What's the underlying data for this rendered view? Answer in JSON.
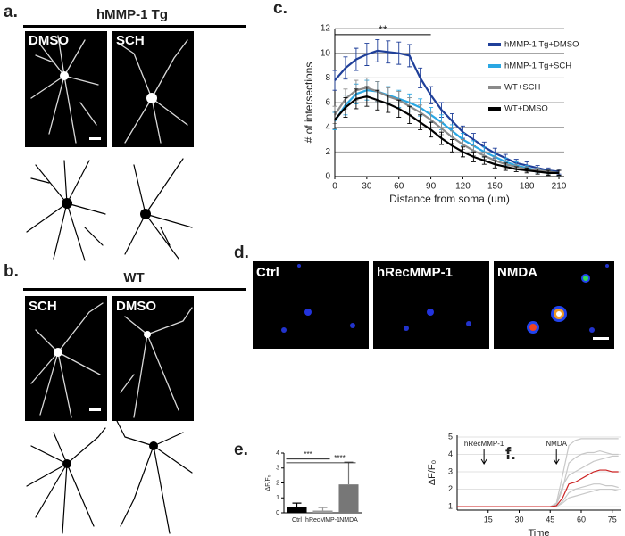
{
  "figure": {
    "a": {
      "label": "a.",
      "group": "hMMP-1 Tg",
      "images": [
        "DMSO",
        "SCH"
      ]
    },
    "b": {
      "label": "b.",
      "group": "WT",
      "images": [
        "SCH",
        "DMSO"
      ]
    },
    "c": {
      "label": "c."
    },
    "d": {
      "label": "d.",
      "images": [
        "Ctrl",
        "hRecMMP-1",
        "NMDA"
      ]
    },
    "e": {
      "label": "e."
    },
    "f": {
      "label": "f."
    }
  },
  "chart_data": [
    {
      "type": "line",
      "xlabel": "Distance from soma (um)",
      "ylabel": "# of intersections",
      "x": [
        0,
        10,
        20,
        30,
        40,
        50,
        60,
        70,
        80,
        90,
        100,
        110,
        120,
        130,
        140,
        150,
        160,
        170,
        180,
        190,
        200,
        210
      ],
      "xlim": [
        0,
        215
      ],
      "xticks": [
        0,
        30,
        60,
        90,
        120,
        150,
        180,
        210
      ],
      "ylim": [
        0,
        12
      ],
      "yticks": [
        0,
        2,
        4,
        6,
        8,
        10,
        12
      ],
      "grid": true,
      "legend": "upper right",
      "annotation": {
        "text": "**",
        "x_range": [
          0,
          90
        ],
        "y": 11.5
      },
      "series": [
        {
          "name": "hMMP-1 Tg+DMSO",
          "color": "#1f3f99",
          "values": [
            7.8,
            8.8,
            9.5,
            9.9,
            10.2,
            10.1,
            10.0,
            9.8,
            8.0,
            6.6,
            5.4,
            4.5,
            3.6,
            3.0,
            2.4,
            1.9,
            1.5,
            1.1,
            0.9,
            0.7,
            0.5,
            0.4
          ],
          "errors": [
            0.8,
            0.9,
            0.9,
            0.9,
            0.9,
            0.9,
            0.9,
            0.9,
            0.8,
            0.7,
            0.6,
            0.6,
            0.5,
            0.5,
            0.4,
            0.4,
            0.3,
            0.3,
            0.3,
            0.2,
            0.2,
            0.2
          ]
        },
        {
          "name": "hMMP-1 Tg+SCH",
          "color": "#2aa7e3",
          "values": [
            4.5,
            5.8,
            6.7,
            7.0,
            6.9,
            6.6,
            6.3,
            6.0,
            5.6,
            5.0,
            4.4,
            3.7,
            3.0,
            2.5,
            2.0,
            1.6,
            1.2,
            0.9,
            0.7,
            0.5,
            0.4,
            0.3
          ],
          "errors": [
            0.7,
            0.8,
            0.8,
            0.8,
            0.8,
            0.7,
            0.7,
            0.7,
            0.7,
            0.6,
            0.6,
            0.5,
            0.5,
            0.4,
            0.4,
            0.3,
            0.3,
            0.3,
            0.2,
            0.2,
            0.2,
            0.2
          ]
        },
        {
          "name": "WT+SCH",
          "color": "#8a8a8a",
          "values": [
            5.0,
            6.3,
            7.0,
            7.2,
            6.9,
            6.5,
            6.2,
            5.7,
            5.2,
            4.6,
            3.9,
            3.2,
            2.6,
            2.1,
            1.7,
            1.3,
            1.0,
            0.8,
            0.6,
            0.5,
            0.4,
            0.3
          ],
          "errors": [
            0.7,
            0.8,
            0.8,
            0.8,
            0.8,
            0.7,
            0.7,
            0.7,
            0.6,
            0.6,
            0.5,
            0.5,
            0.4,
            0.4,
            0.3,
            0.3,
            0.3,
            0.2,
            0.2,
            0.2,
            0.2,
            0.2
          ]
        },
        {
          "name": "WT+DMSO",
          "color": "#000000",
          "values": [
            4.6,
            5.6,
            6.3,
            6.5,
            6.2,
            5.9,
            5.5,
            5.0,
            4.4,
            3.8,
            3.1,
            2.5,
            2.0,
            1.6,
            1.3,
            1.0,
            0.8,
            0.6,
            0.5,
            0.4,
            0.3,
            0.3
          ],
          "errors": [
            0.7,
            0.8,
            0.8,
            0.8,
            0.8,
            0.7,
            0.7,
            0.7,
            0.6,
            0.6,
            0.5,
            0.5,
            0.4,
            0.4,
            0.3,
            0.3,
            0.3,
            0.2,
            0.2,
            0.2,
            0.2,
            0.2
          ]
        }
      ]
    },
    {
      "type": "bar",
      "ylabel": "ΔF/F₀",
      "categories": [
        "Ctrl",
        "hRecMMP-1",
        "NMDA"
      ],
      "values": [
        0.4,
        0.15,
        1.9
      ],
      "errors": [
        0.25,
        0.2,
        1.5
      ],
      "colors": [
        "#000000",
        "#9a9a9a",
        "#777777"
      ],
      "ylim": [
        0,
        4
      ],
      "yticks": [
        0,
        1,
        2,
        3,
        4
      ],
      "grid": false,
      "comparisons": [
        {
          "label": "***",
          "from": 0,
          "to": 1,
          "y": 3.6
        },
        {
          "label": "****",
          "from": 0,
          "to": 2,
          "y": 3.35
        }
      ]
    },
    {
      "type": "line",
      "xlabel": "Time",
      "ylabel": "ΔF/F₀",
      "x": [
        0,
        3,
        6,
        9,
        12,
        15,
        18,
        21,
        24,
        27,
        30,
        33,
        36,
        39,
        42,
        45,
        48,
        51,
        54,
        57,
        60,
        63,
        66,
        69,
        72,
        75,
        78
      ],
      "xlim": [
        0,
        79
      ],
      "xticks": [
        15,
        30,
        45,
        60,
        75
      ],
      "ylim": [
        0.8,
        5.1
      ],
      "yticks": [
        1,
        2,
        3,
        4,
        5
      ],
      "grid": true,
      "annotations": [
        {
          "text": "hRecMMP-1",
          "x": 13
        },
        {
          "text": "NMDA",
          "x": 48
        }
      ],
      "series": [
        {
          "color": "#c8c8c8",
          "values": [
            1,
            1,
            1,
            1,
            1,
            1,
            1,
            1,
            1,
            1,
            1,
            1,
            1,
            1,
            1,
            1,
            1.1,
            2.0,
            3.5,
            3.8,
            4.0,
            4.1,
            4.1,
            4.2,
            4.1,
            4.0,
            4.0
          ]
        },
        {
          "color": "#c8c8c8",
          "values": [
            1,
            1,
            1,
            1,
            1,
            1,
            1,
            1,
            1,
            1,
            1,
            1,
            1,
            1,
            1,
            1,
            1.0,
            1.3,
            1.8,
            2.0,
            2.1,
            2.2,
            2.3,
            2.3,
            2.2,
            2.2,
            2.1
          ]
        },
        {
          "color": "#c8c8c8",
          "values": [
            1,
            1,
            1,
            1,
            1,
            1,
            1,
            1,
            1,
            1,
            1,
            1,
            1,
            1,
            1,
            1,
            1.2,
            2.8,
            4.5,
            4.8,
            4.9,
            4.9,
            4.9,
            4.9,
            4.9,
            4.9,
            4.9
          ]
        },
        {
          "color": "#c8c8c8",
          "values": [
            1,
            1,
            1,
            1,
            1,
            1,
            1,
            1,
            1,
            1,
            1,
            1,
            1,
            1,
            1,
            1,
            1.0,
            1.2,
            1.5,
            1.6,
            1.7,
            1.8,
            1.9,
            2.0,
            2.0,
            2.0,
            1.9
          ]
        },
        {
          "color": "#c8c8c8",
          "values": [
            1,
            1,
            1,
            1,
            1,
            1,
            1,
            1,
            1,
            1,
            1,
            1,
            1,
            1,
            1,
            1,
            1.1,
            2.2,
            2.8,
            3.0,
            3.2,
            3.4,
            3.6,
            3.7,
            3.8,
            3.9,
            3.9
          ]
        },
        {
          "color": "#cc2222",
          "values": [
            1,
            1,
            1,
            1,
            1,
            1,
            1,
            1,
            1,
            1,
            1,
            1,
            1,
            1,
            1,
            1,
            1.05,
            1.5,
            2.3,
            2.4,
            2.6,
            2.8,
            3.0,
            3.1,
            3.1,
            3.0,
            3.0
          ]
        }
      ]
    }
  ]
}
